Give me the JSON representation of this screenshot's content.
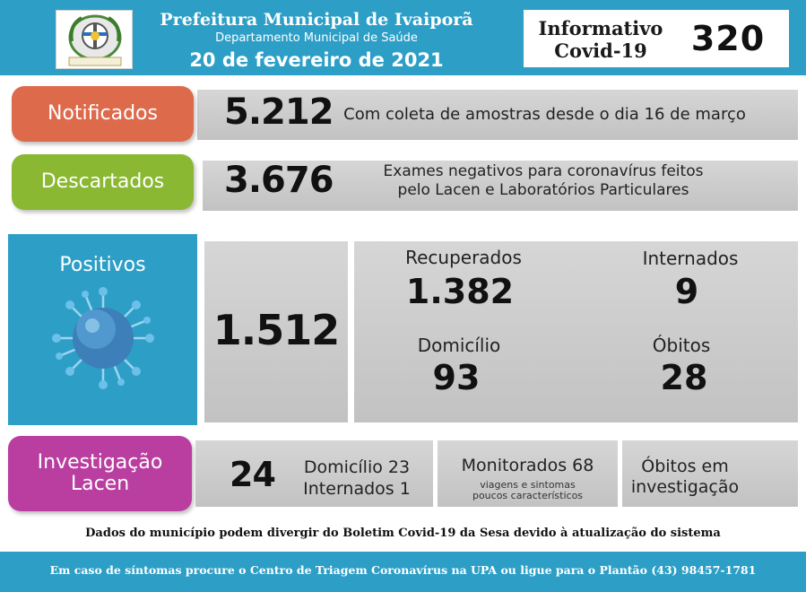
{
  "header": {
    "title": "Prefeitura Municipal de Ivaiporã",
    "department": "Departamento Municipal de Saúde",
    "date": "20 de fevereiro de 2021",
    "bulletin_label_line1": "Informativo",
    "bulletin_label_line2": "Covid-19",
    "edition_number": "320"
  },
  "notificados": {
    "label": "Notificados",
    "value": "5.212",
    "description": "Com coleta de amostras desde o dia 16 de março"
  },
  "descartados": {
    "label": "Descartados",
    "value": "3.676",
    "description_line1": "Exames negativos para coronavírus feitos",
    "description_line2": "pelo Lacen e Laboratórios Particulares"
  },
  "positivos": {
    "label": "Positivos",
    "total": "1.512",
    "recuperados_label": "Recuperados",
    "recuperados_value": "1.382",
    "internados_label": "Internados",
    "internados_value": "9",
    "domicilio_label": "Domicílio",
    "domicilio_value": "93",
    "obitos_label": "Óbitos",
    "obitos_value": "28"
  },
  "investigacao": {
    "label_line1": "Investigação",
    "label_line2": "Lacen",
    "total": "24",
    "domicilio": "Domicílio 23",
    "internados": "Internados 1",
    "monitorados": "Monitorados 68",
    "monitorados_note_line1": "viagens e sintomas",
    "monitorados_note_line2": "poucos característicos",
    "obitos_line1": "Óbitos em",
    "obitos_line2": "investigação"
  },
  "disclaimer": "Dados do município podem divergir do Boletim Covid-19 da Sesa devido à atualização do sistema",
  "footer": "Em caso de síntomas procure o Centro de Triagem Coronavírus na UPA ou ligue para o Plantão (43) 98457-1781",
  "colors": {
    "header_blue": "#2d9fc7",
    "notificados": "#de6a4c",
    "descartados": "#8ab832",
    "positivos": "#2d9fc7",
    "investigacao": "#b93ea0"
  },
  "icons": [
    "municipal-coat-of-arms-icon",
    "coronavirus-icon"
  ]
}
